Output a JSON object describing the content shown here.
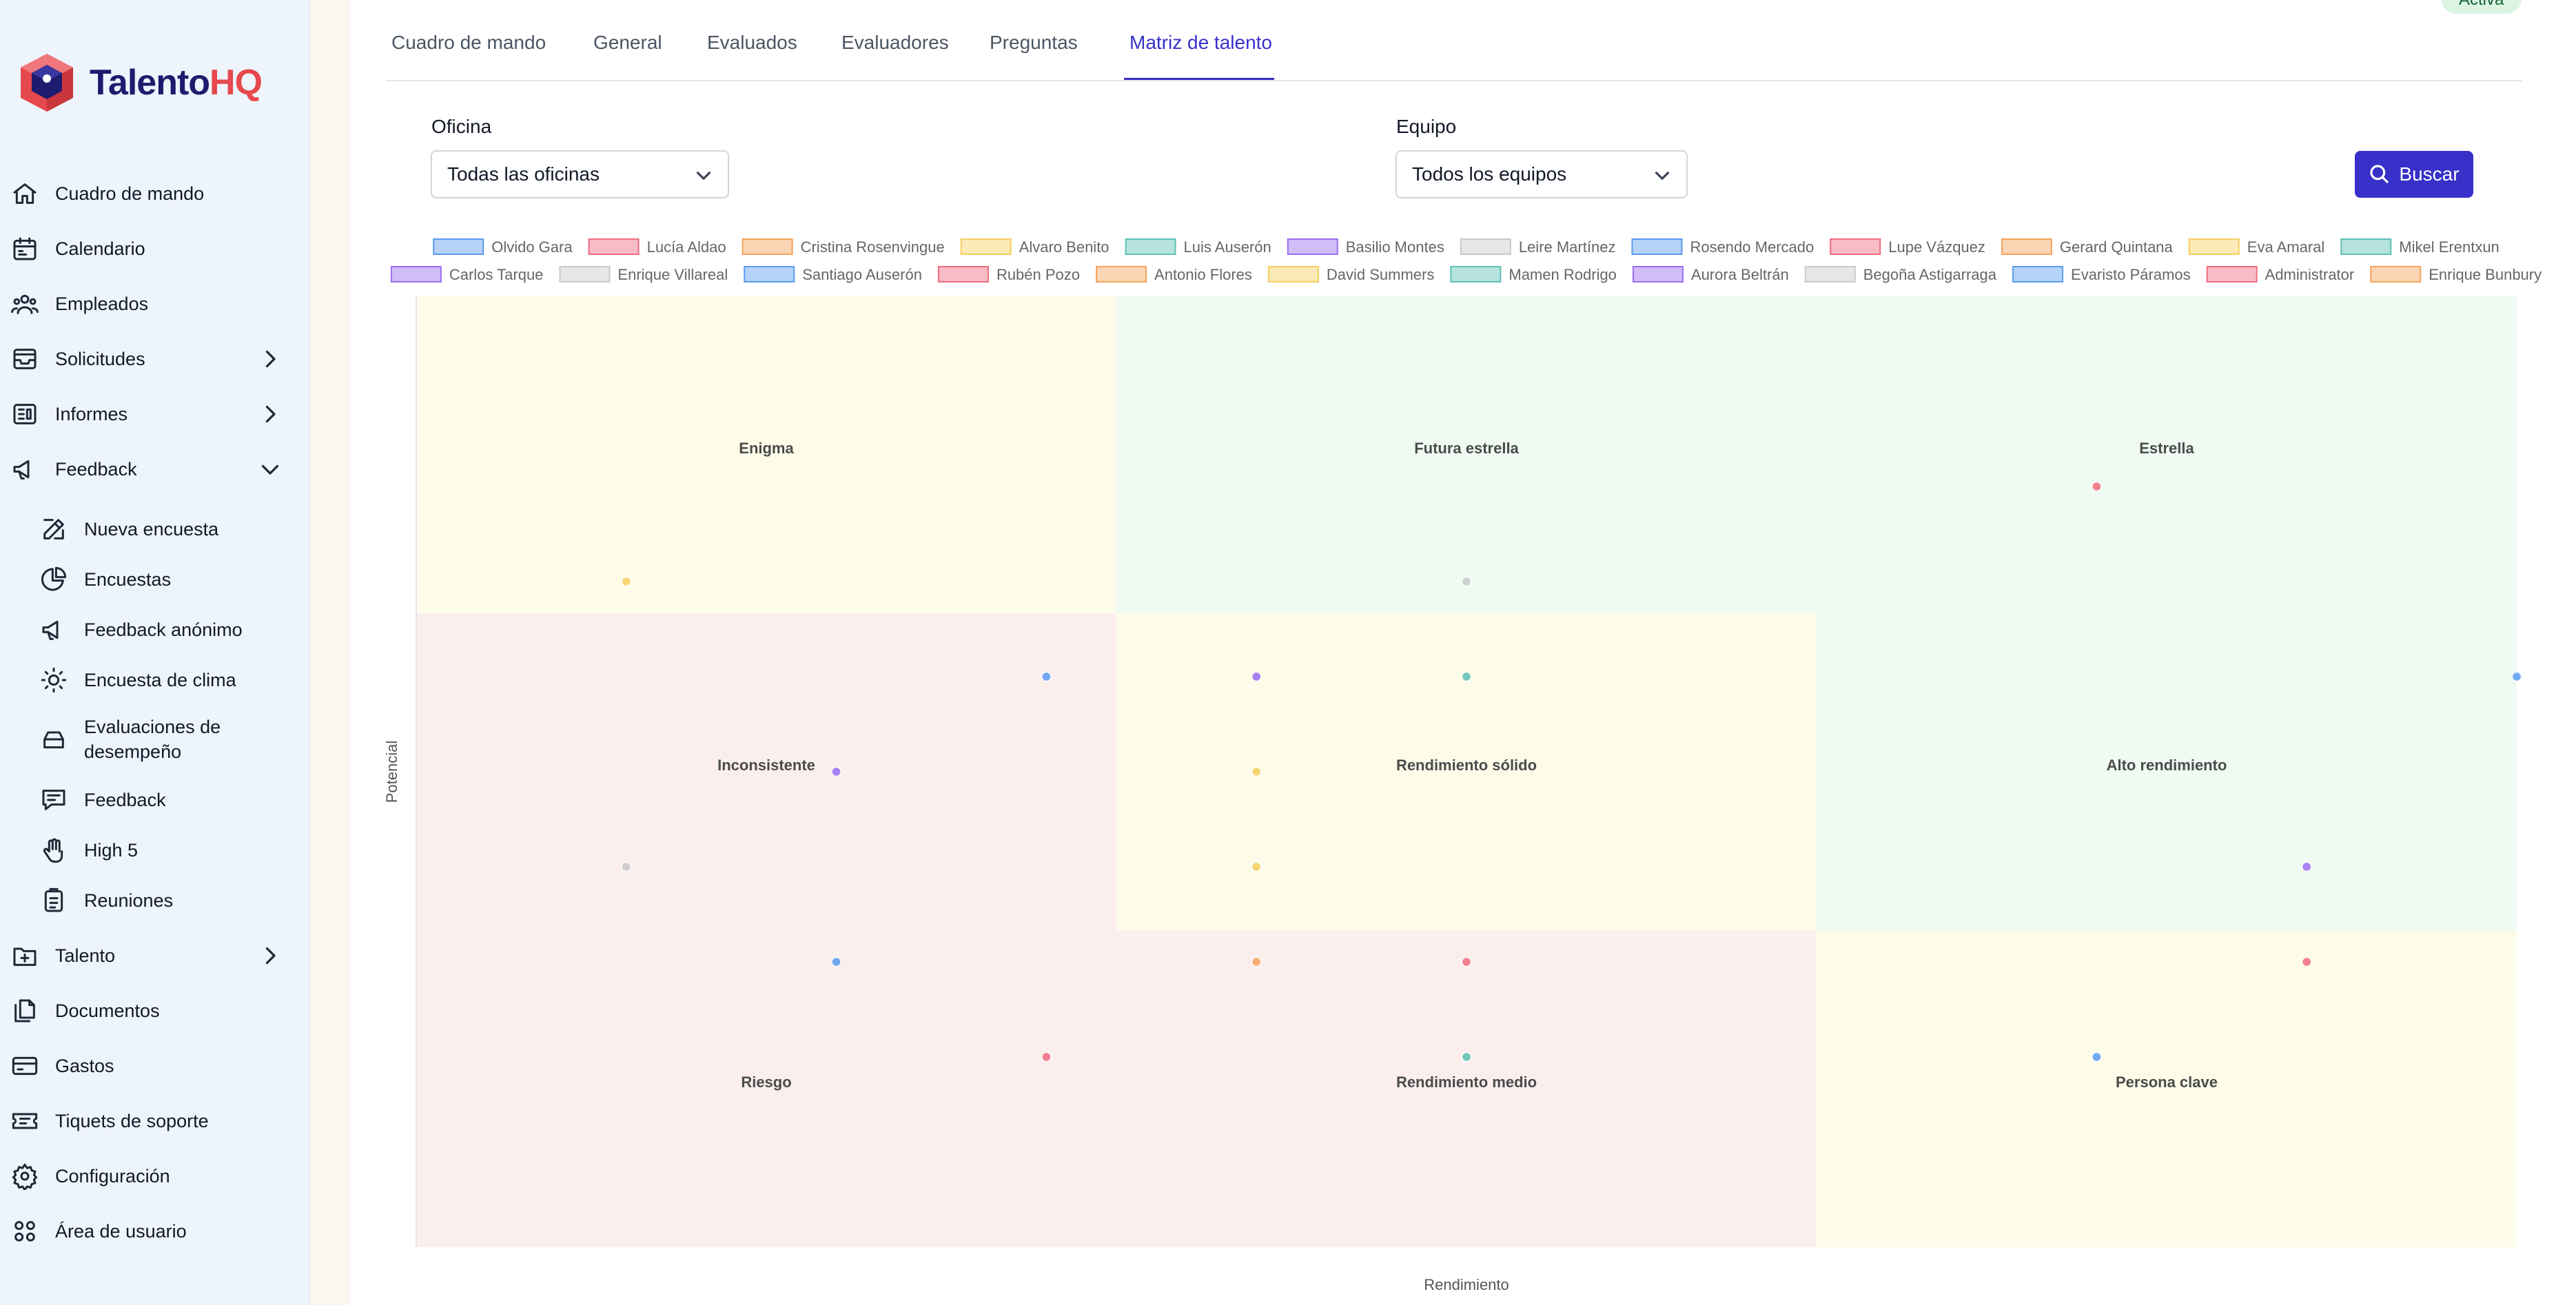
{
  "app": {
    "brand_main": "Talento",
    "brand_accent": "HQ"
  },
  "sidebar": {
    "items": [
      {
        "label": "Cuadro de mando",
        "icon": "home-icon"
      },
      {
        "label": "Calendario",
        "icon": "calendar-icon"
      },
      {
        "label": "Empleados",
        "icon": "users-icon"
      },
      {
        "label": "Solicitudes",
        "icon": "inbox-icon",
        "expandable": true
      },
      {
        "label": "Informes",
        "icon": "report-icon",
        "expandable": true
      },
      {
        "label": "Feedback",
        "icon": "megaphone-icon",
        "expanded": true
      },
      {
        "label": "Talento",
        "icon": "plus-square-icon",
        "expandable": true
      },
      {
        "label": "Documentos",
        "icon": "documents-icon"
      },
      {
        "label": "Gastos",
        "icon": "credit-card-icon"
      },
      {
        "label": "Tiquets de soporte",
        "icon": "ticket-icon"
      },
      {
        "label": "Configuración",
        "icon": "gear-icon"
      },
      {
        "label": "Área de usuario",
        "icon": "grid-icon"
      }
    ],
    "feedback_sub": [
      {
        "label": "Nueva encuesta",
        "icon": "edit-icon"
      },
      {
        "label": "Encuestas",
        "icon": "pie-chart-icon"
      },
      {
        "label": "Feedback anónimo",
        "icon": "megaphone-icon"
      },
      {
        "label": "Encuesta de clima",
        "icon": "sun-icon"
      },
      {
        "label_line1": "Evaluaciones de",
        "label_line2": "desempeño",
        "icon": "tray-icon"
      },
      {
        "label": "Feedback",
        "icon": "message-icon"
      },
      {
        "label": "High 5",
        "icon": "hand-icon"
      },
      {
        "label": "Reuniones",
        "icon": "clipboard-icon"
      }
    ]
  },
  "status_badge": "Activa",
  "tabs": [
    {
      "label": "Cuadro de mando"
    },
    {
      "label": "General"
    },
    {
      "label": "Evaluados"
    },
    {
      "label": "Evaluadores"
    },
    {
      "label": "Preguntas"
    },
    {
      "label": "Matriz de talento",
      "active": true
    }
  ],
  "filters": {
    "office_label": "Oficina",
    "office_value": "Todas las oficinas",
    "team_label": "Equipo",
    "team_value": "Todos los equipos",
    "search_label": "Buscar"
  },
  "colors": {
    "accent": "#3730c9",
    "zone_yellow": "#fdfce8",
    "zone_green": "#eefaf2",
    "zone_red": "#fbefee"
  },
  "chart_data": {
    "type": "scatter",
    "title": "",
    "xlabel": "Rendimiento",
    "ylabel": "Potencial",
    "xlim": [
      0,
      10
    ],
    "ylim": [
      0,
      10
    ],
    "grid": "3x3 zones",
    "legend_placement": "top",
    "zones": [
      {
        "label": "Enigma",
        "col": 0,
        "row": 0,
        "tone": "yellow"
      },
      {
        "label": "Futura estrella",
        "col": 1,
        "row": 0,
        "tone": "green"
      },
      {
        "label": "Estrella",
        "col": 2,
        "row": 0,
        "tone": "green"
      },
      {
        "label": "Inconsistente",
        "col": 0,
        "row": 1,
        "tone": "red"
      },
      {
        "label": "Rendimiento sólido",
        "col": 1,
        "row": 1,
        "tone": "yellow"
      },
      {
        "label": "Alto rendimiento",
        "col": 2,
        "row": 1,
        "tone": "green"
      },
      {
        "label": "Riesgo",
        "col": 0,
        "row": 2,
        "tone": "red"
      },
      {
        "label": "Rendimiento medio",
        "col": 1,
        "row": 2,
        "tone": "red"
      },
      {
        "label": "Persona clave",
        "col": 2,
        "row": 2,
        "tone": "yellow"
      }
    ],
    "series": [
      {
        "name": "Olvido Gara",
        "color": "#5b9bf0",
        "points": [
          [
            3.0,
            6.0
          ]
        ]
      },
      {
        "name": "Lucía Aldao",
        "color": "#f06b7e",
        "points": [
          [
            8.0,
            8.0
          ]
        ]
      },
      {
        "name": "Cristina Rosenvingue",
        "color": "#f5a35a",
        "points": [
          [
            4.0,
            3.0
          ]
        ]
      },
      {
        "name": "Alvaro Benito",
        "color": "#f6cf5f",
        "points": [
          [
            1.0,
            7.0
          ]
        ]
      },
      {
        "name": "Luis Auserón",
        "color": "#5ec0b4",
        "points": [
          [
            5.0,
            6.0
          ]
        ]
      },
      {
        "name": "Basilio Montes",
        "color": "#9b6df2",
        "points": [
          [
            4.0,
            6.0
          ]
        ]
      },
      {
        "name": "Leire Martínez",
        "color": "#c9c9c9",
        "points": [
          [
            5.0,
            7.0
          ]
        ]
      },
      {
        "name": "Rosendo Mercado",
        "color": "#5b9bf0",
        "points": [
          [
            10.0,
            6.0
          ]
        ]
      },
      {
        "name": "Lupe Vázquez",
        "color": "#f06b7e",
        "points": [
          [
            9.0,
            3.0
          ]
        ]
      },
      {
        "name": "Gerard Quintana",
        "color": "#f5a35a",
        "points": []
      },
      {
        "name": "Eva Amaral",
        "color": "#f6cf5f",
        "points": [
          [
            4.0,
            5.0
          ]
        ]
      },
      {
        "name": "Mikel Erentxun",
        "color": "#5ec0b4",
        "points": [
          [
            5.0,
            2.0
          ]
        ]
      },
      {
        "name": "Carlos Tarque",
        "color": "#9b6df2",
        "points": [
          [
            2.0,
            5.0
          ]
        ]
      },
      {
        "name": "Enrique Villareal",
        "color": "#c9c9c9",
        "points": [
          [
            1.0,
            4.0
          ]
        ]
      },
      {
        "name": "Santiago Auserón",
        "color": "#5b9bf0",
        "points": [
          [
            2.0,
            3.0
          ]
        ]
      },
      {
        "name": "Rubén Pozo",
        "color": "#f06b7e",
        "points": [
          [
            3.0,
            2.0
          ]
        ]
      },
      {
        "name": "Antonio Flores",
        "color": "#f5a35a",
        "points": []
      },
      {
        "name": "David Summers",
        "color": "#f6cf5f",
        "points": [
          [
            4.0,
            4.0
          ]
        ]
      },
      {
        "name": "Mamen Rodrigo",
        "color": "#5ec0b4",
        "points": []
      },
      {
        "name": "Aurora Beltrán",
        "color": "#9b6df2",
        "points": [
          [
            9.0,
            4.0
          ]
        ]
      },
      {
        "name": "Begoña Astigarraga",
        "color": "#c9c9c9",
        "points": []
      },
      {
        "name": "Evaristo Páramos",
        "color": "#5b9bf0",
        "points": [
          [
            8.0,
            2.0
          ]
        ]
      },
      {
        "name": "Administrator",
        "color": "#f06b7e",
        "points": [
          [
            5.0,
            3.0
          ]
        ]
      },
      {
        "name": "Enrique Bunbury",
        "color": "#f5a35a",
        "points": []
      }
    ]
  }
}
